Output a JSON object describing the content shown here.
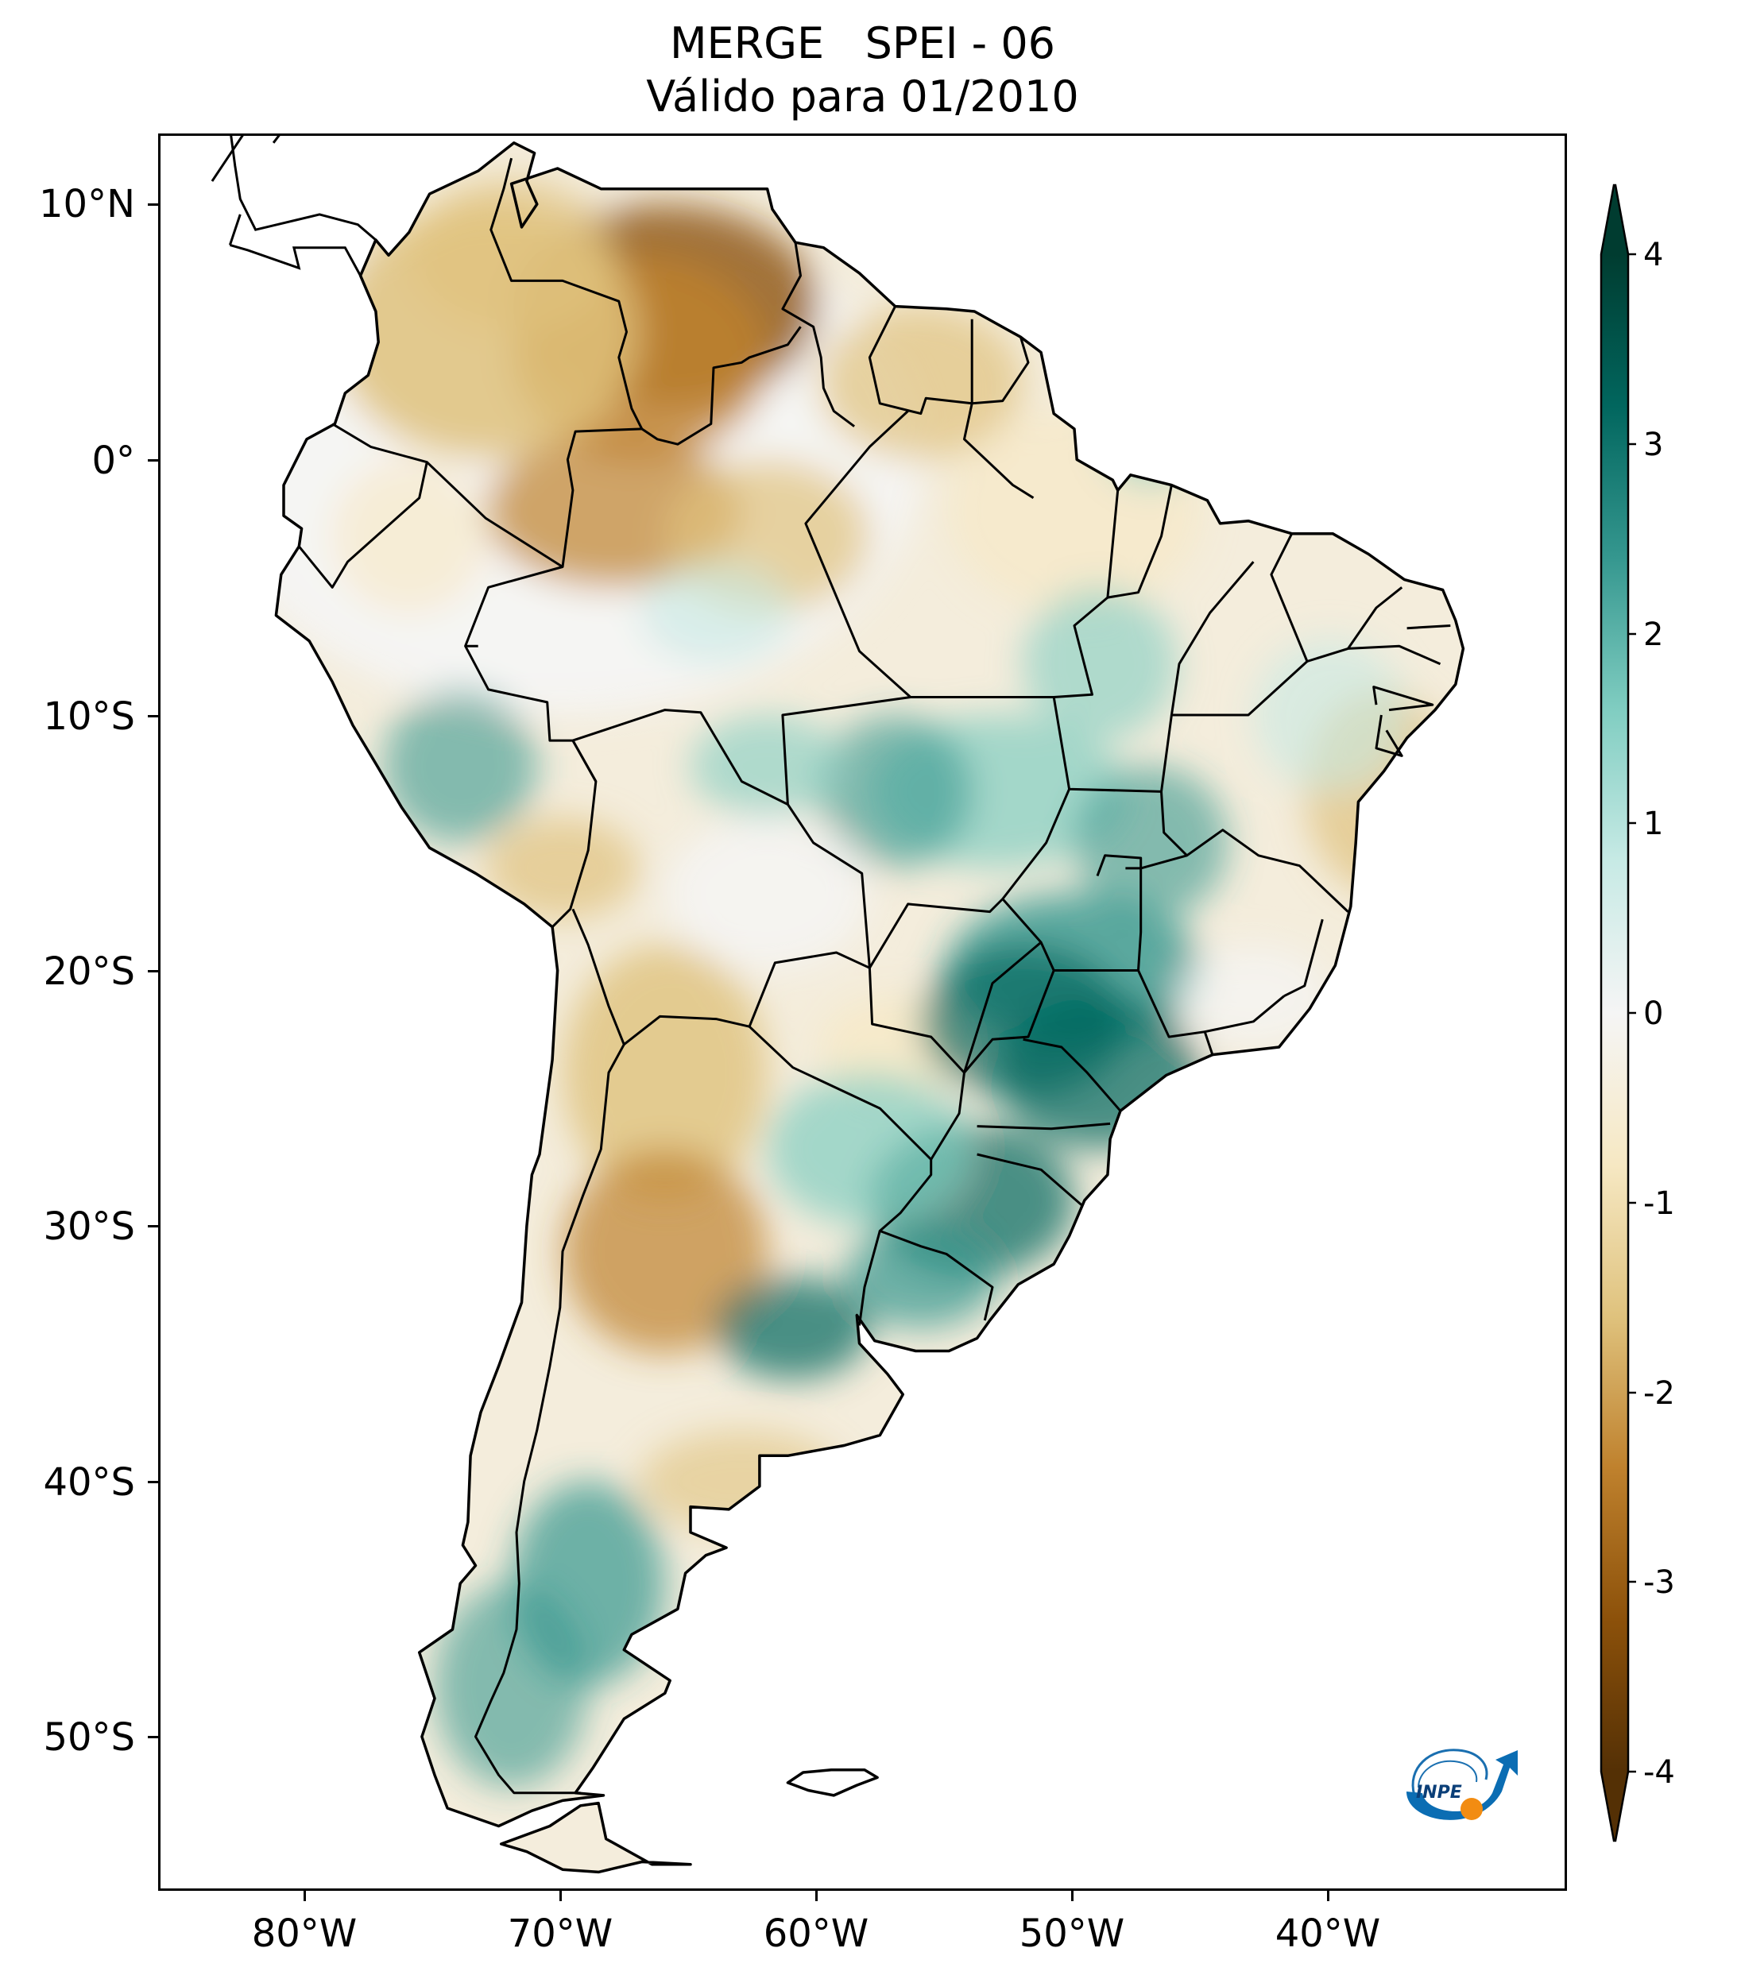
{
  "title": {
    "line1": "MERGE   SPEI - 06",
    "line2": "Válido para 01/2010"
  },
  "axes": {
    "lat_ticks": [
      {
        "value": 10,
        "label": "10°N"
      },
      {
        "value": 0,
        "label": "0°"
      },
      {
        "value": -10,
        "label": "10°S"
      },
      {
        "value": -20,
        "label": "20°S"
      },
      {
        "value": -30,
        "label": "30°S"
      },
      {
        "value": -40,
        "label": "40°S"
      },
      {
        "value": -50,
        "label": "50°S"
      }
    ],
    "lon_ticks": [
      {
        "value": -80,
        "label": "80°W"
      },
      {
        "value": -70,
        "label": "70°W"
      },
      {
        "value": -60,
        "label": "60°W"
      },
      {
        "value": -50,
        "label": "50°W"
      },
      {
        "value": -40,
        "label": "40°W"
      }
    ]
  },
  "colorbar": {
    "range": [
      -4,
      4
    ],
    "extend": "both",
    "ticks": [
      "4",
      "3",
      "2",
      "1",
      "0",
      "-1",
      "-2",
      "-3",
      "-4"
    ],
    "colors": {
      "dry_extreme": "#543005",
      "dry_strong": "#8c510a",
      "dry_moderate": "#bf812d",
      "dry_mild": "#dfc27d",
      "dry_light": "#f6e8c3",
      "neutral": "#f5f5f5",
      "wet_light": "#c7eae5",
      "wet_mild": "#80cdc1",
      "wet_moderate": "#35978f",
      "wet_strong": "#01665e",
      "wet_extreme": "#003c30"
    }
  },
  "logo": {
    "text": "INPE"
  }
}
